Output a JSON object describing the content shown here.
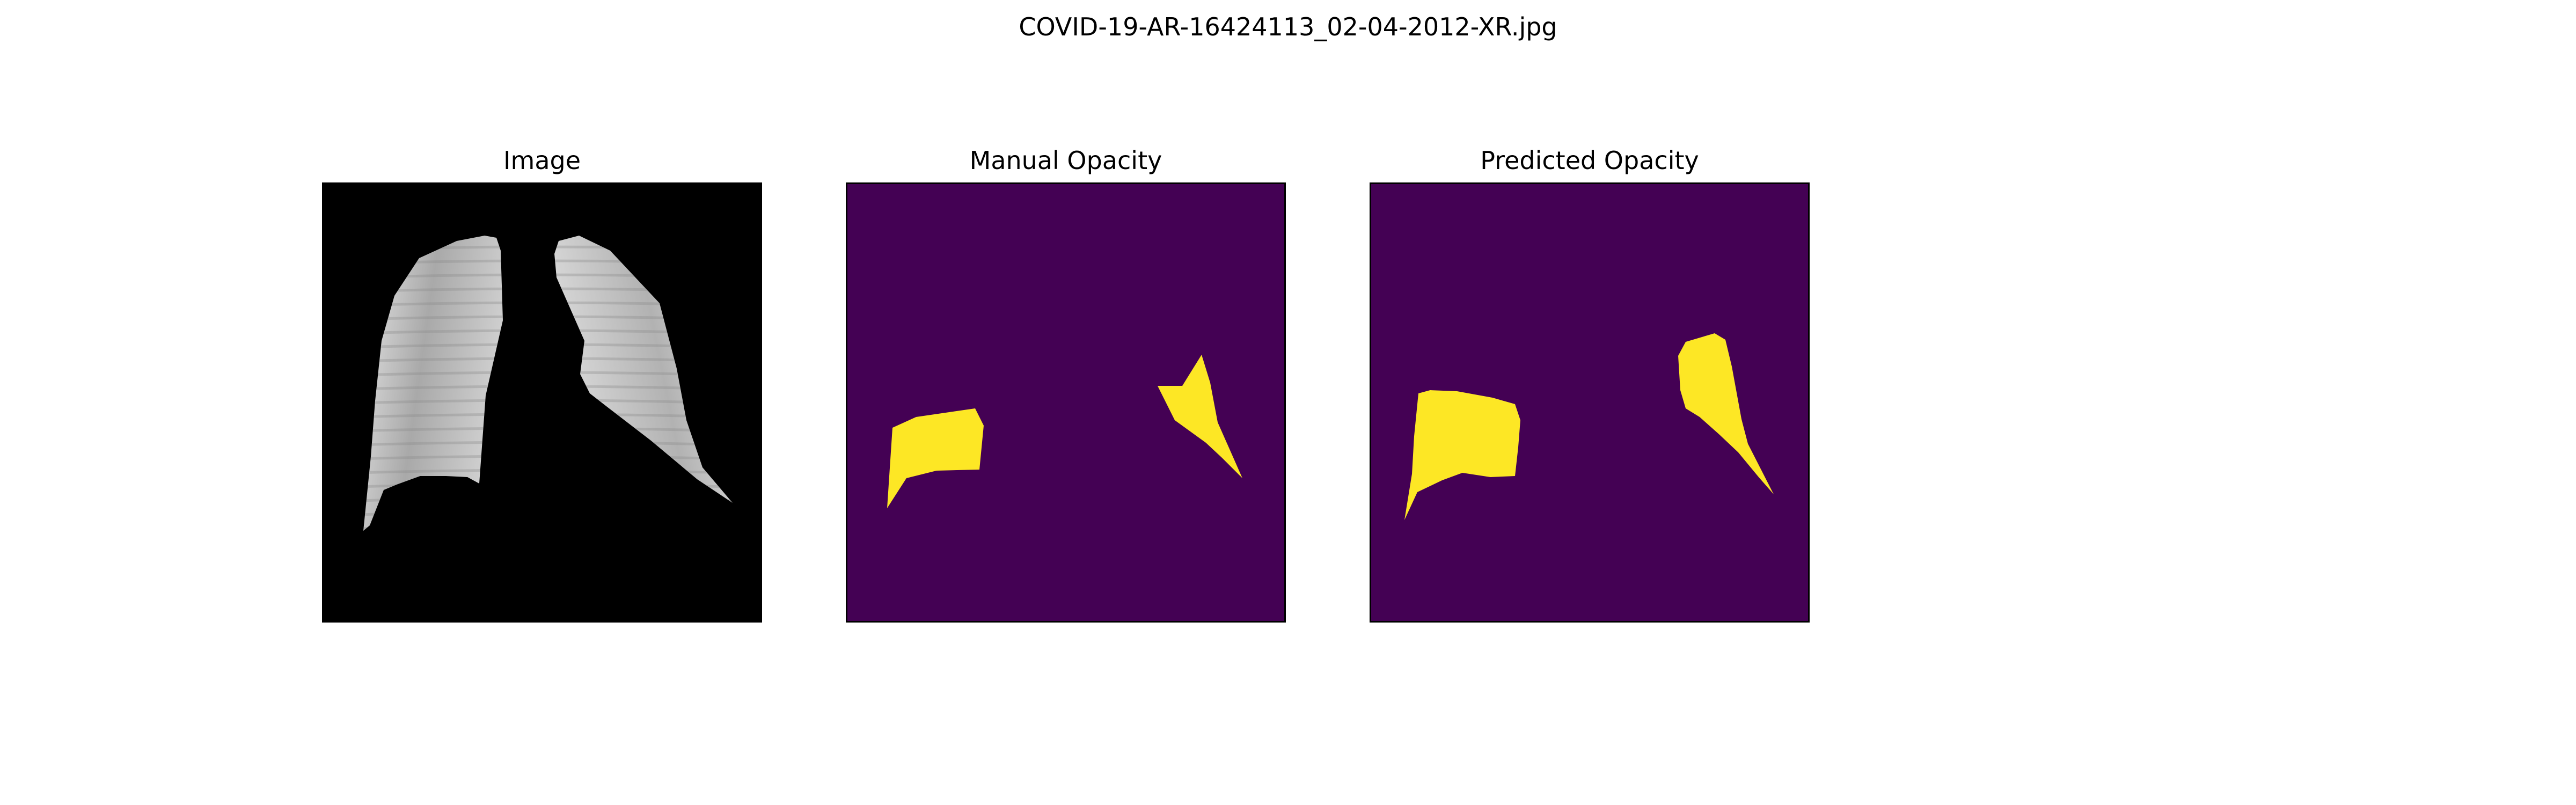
{
  "figure": {
    "title": "COVID-19-AR-16424113_02-04-2012-XR.jpg"
  },
  "panels": [
    {
      "title": "Image",
      "content": "masked-chest-xray-lungs"
    },
    {
      "title": "Manual Opacity",
      "content": "manual-opacity-mask"
    },
    {
      "title": "Predicted Opacity",
      "content": "predicted-opacity-mask"
    }
  ],
  "colors": {
    "xray_background": "#000000",
    "mask_background": "#440154",
    "mask_foreground": "#fde725"
  }
}
